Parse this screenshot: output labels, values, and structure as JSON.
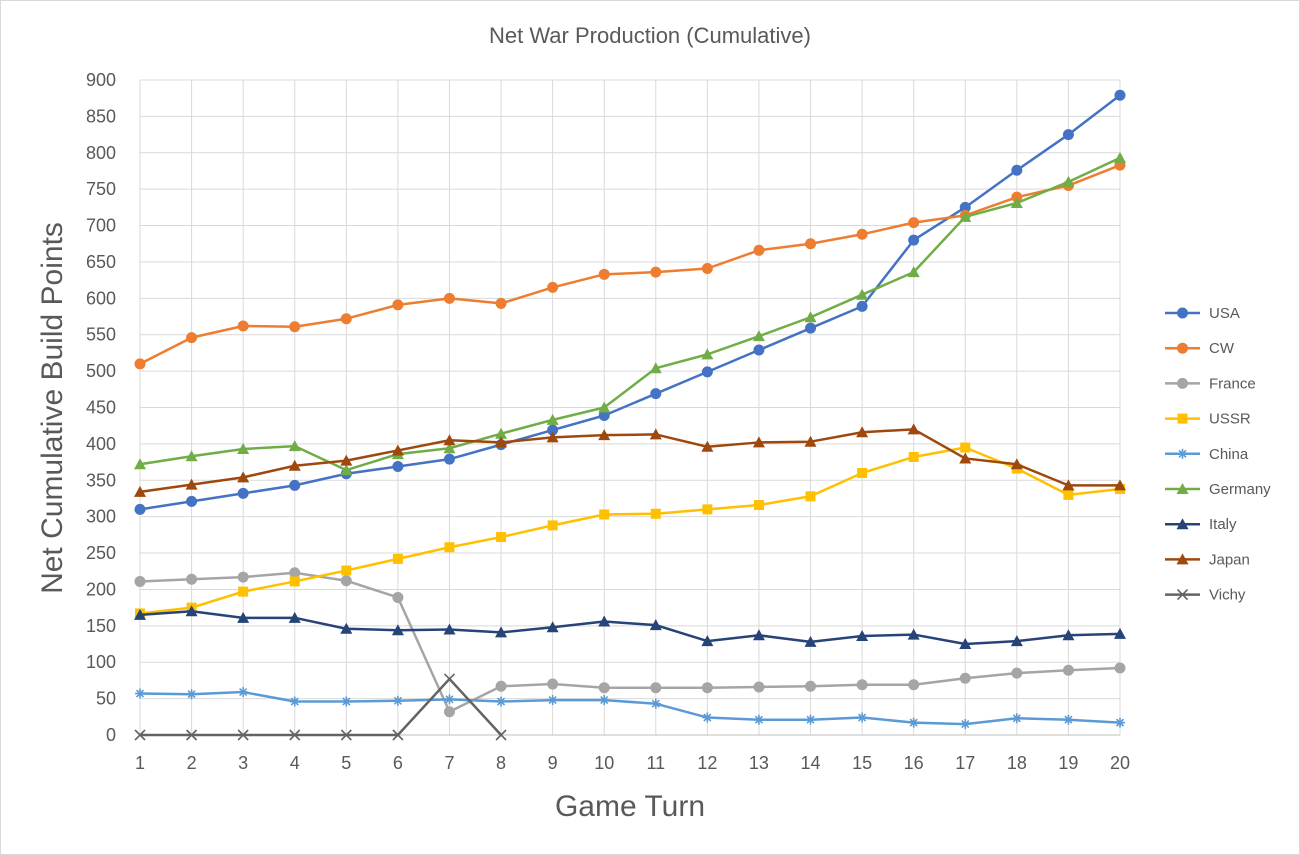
{
  "chart_data": {
    "type": "line",
    "title": "Net War Production (Cumulative)",
    "xlabel": "Game Turn",
    "ylabel": "Net Cumulative Build Points",
    "x": [
      1,
      2,
      3,
      4,
      5,
      6,
      7,
      8,
      9,
      10,
      11,
      12,
      13,
      14,
      15,
      16,
      17,
      18,
      19,
      20
    ],
    "ylim": [
      0,
      900
    ],
    "yticks": [
      0,
      50,
      100,
      150,
      200,
      250,
      300,
      350,
      400,
      450,
      500,
      550,
      600,
      650,
      700,
      750,
      800,
      850,
      900
    ],
    "grid": true,
    "legend_position": "right",
    "series": [
      {
        "name": "USA",
        "color": "#4472C4",
        "marker": "circle",
        "values": [
          310,
          321,
          332,
          343,
          359,
          369,
          379,
          399,
          419,
          439,
          469,
          499,
          529,
          559,
          589,
          680,
          725,
          776,
          825,
          879
        ]
      },
      {
        "name": "CW",
        "color": "#ED7D31",
        "marker": "circle",
        "values": [
          510,
          546,
          562,
          561,
          572,
          591,
          600,
          593,
          615,
          633,
          636,
          641,
          666,
          675,
          688,
          704,
          714,
          739,
          755,
          783
        ]
      },
      {
        "name": "France",
        "color": "#A5A5A5",
        "marker": "circle",
        "values": [
          211,
          214,
          217,
          223,
          212,
          189,
          32,
          67,
          70,
          65,
          65,
          65,
          66,
          67,
          69,
          69,
          78,
          85,
          89,
          92
        ]
      },
      {
        "name": "USSR",
        "color": "#FFC000",
        "marker": "square",
        "values": [
          167,
          175,
          197,
          211,
          226,
          242,
          258,
          272,
          288,
          303,
          304,
          310,
          316,
          328,
          360,
          382,
          395,
          366,
          330,
          338
        ]
      },
      {
        "name": "China",
        "color": "#5B9BD5",
        "marker": "star",
        "values": [
          57,
          56,
          59,
          46,
          46,
          47,
          49,
          46,
          48,
          48,
          43,
          24,
          21,
          21,
          24,
          17,
          15,
          23,
          21,
          17
        ]
      },
      {
        "name": "Germany",
        "color": "#70AD47",
        "marker": "triangle",
        "values": [
          372,
          383,
          393,
          397,
          364,
          386,
          394,
          414,
          433,
          450,
          504,
          523,
          548,
          574,
          605,
          636,
          712,
          731,
          760,
          793
        ]
      },
      {
        "name": "Italy",
        "color": "#264478",
        "marker": "triangle",
        "values": [
          165,
          170,
          161,
          161,
          146,
          144,
          145,
          141,
          148,
          156,
          151,
          129,
          137,
          128,
          136,
          138,
          125,
          129,
          137,
          139
        ]
      },
      {
        "name": "Japan",
        "color": "#9E480E",
        "marker": "triangle",
        "values": [
          334,
          344,
          354,
          370,
          377,
          391,
          405,
          402,
          409,
          412,
          413,
          396,
          402,
          403,
          416,
          420,
          380,
          372,
          343,
          343
        ]
      },
      {
        "name": "Vichy",
        "color": "#636363",
        "marker": "x",
        "values": [
          0,
          0,
          0,
          0,
          0,
          0,
          77,
          0,
          null,
          null,
          null,
          null,
          null,
          null,
          null,
          null,
          null,
          null,
          null,
          null
        ]
      }
    ]
  }
}
